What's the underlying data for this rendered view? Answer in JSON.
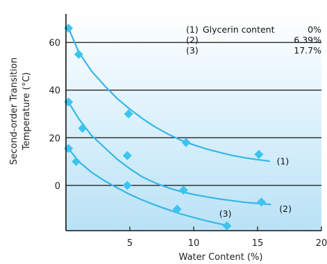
{
  "chart_data": {
    "type": "scatter",
    "title": "",
    "xlabel": "Water Content (%)",
    "ylabel_line1": "Second-order Transition",
    "ylabel_line2": "Temperature (°C)",
    "xlim": [
      0,
      20
    ],
    "ylim": [
      -19,
      72
    ],
    "x_ticks": [
      5,
      10,
      15,
      20
    ],
    "y_ticks": [
      0,
      20,
      40,
      60
    ],
    "grid": "horizontal",
    "legend": {
      "placement": "top-right",
      "rows": [
        {
          "id": "(1)",
          "text": "Glycerin content",
          "value": "0%"
        },
        {
          "id": "(2)",
          "text": "",
          "value": "6.39%"
        },
        {
          "id": "(3)",
          "text": "",
          "value": "17.7%"
        }
      ]
    },
    "colors": {
      "marker": "#3cc4ee",
      "curve": "#35b6e8",
      "plot_top": "#ffffff",
      "plot_bottom": "#b9e2f6"
    },
    "series": [
      {
        "label": "(1)",
        "points": [
          [
            0.2,
            66
          ],
          [
            1.0,
            55
          ],
          [
            4.9,
            30
          ],
          [
            9.4,
            18
          ],
          [
            15.1,
            13
          ]
        ],
        "curve": [
          [
            0.2,
            66
          ],
          [
            1,
            56
          ],
          [
            2,
            48
          ],
          [
            3,
            42
          ],
          [
            4,
            36.5
          ],
          [
            5,
            32
          ],
          [
            6,
            28
          ],
          [
            7,
            24.5
          ],
          [
            8,
            21.5
          ],
          [
            9,
            19
          ],
          [
            10,
            17
          ],
          [
            11,
            15.3
          ],
          [
            12,
            13.9
          ],
          [
            13,
            12.6
          ],
          [
            14,
            11.6
          ],
          [
            15,
            10.8
          ],
          [
            15.9,
            10.2
          ]
        ],
        "label_at": [
          16.5,
          10
        ]
      },
      {
        "label": "(2)",
        "points": [
          [
            0.2,
            35
          ],
          [
            1.3,
            24
          ],
          [
            4.8,
            12.5
          ],
          [
            9.2,
            -2
          ],
          [
            15.3,
            -7
          ]
        ],
        "curve": [
          [
            0.2,
            35
          ],
          [
            1,
            28
          ],
          [
            2,
            21
          ],
          [
            3,
            16
          ],
          [
            4,
            11
          ],
          [
            5,
            7
          ],
          [
            6,
            3.5
          ],
          [
            7,
            1
          ],
          [
            8,
            -1
          ],
          [
            9,
            -2.6
          ],
          [
            10,
            -3.8
          ],
          [
            11,
            -4.8
          ],
          [
            12,
            -5.7
          ],
          [
            13,
            -6.4
          ],
          [
            14,
            -7.1
          ],
          [
            15,
            -7.6
          ],
          [
            16.0,
            -8.0
          ]
        ],
        "label_at": [
          16.7,
          -10
        ]
      },
      {
        "label": "(3)",
        "points": [
          [
            0.2,
            15.5
          ],
          [
            0.8,
            10
          ],
          [
            4.8,
            0
          ],
          [
            8.7,
            -10
          ],
          [
            12.6,
            -17
          ]
        ],
        "curve": [
          [
            0.2,
            15.5
          ],
          [
            1,
            10
          ],
          [
            2,
            5.5
          ],
          [
            3,
            2
          ],
          [
            4,
            -1
          ],
          [
            5,
            -3.8
          ],
          [
            6,
            -6.2
          ],
          [
            7,
            -8.3
          ],
          [
            8,
            -10.2
          ],
          [
            9,
            -12
          ],
          [
            10,
            -13.5
          ],
          [
            11,
            -14.9
          ],
          [
            12,
            -16.1
          ],
          [
            12.8,
            -17.0
          ]
        ],
        "label_at": [
          12.0,
          -12
        ]
      }
    ]
  }
}
